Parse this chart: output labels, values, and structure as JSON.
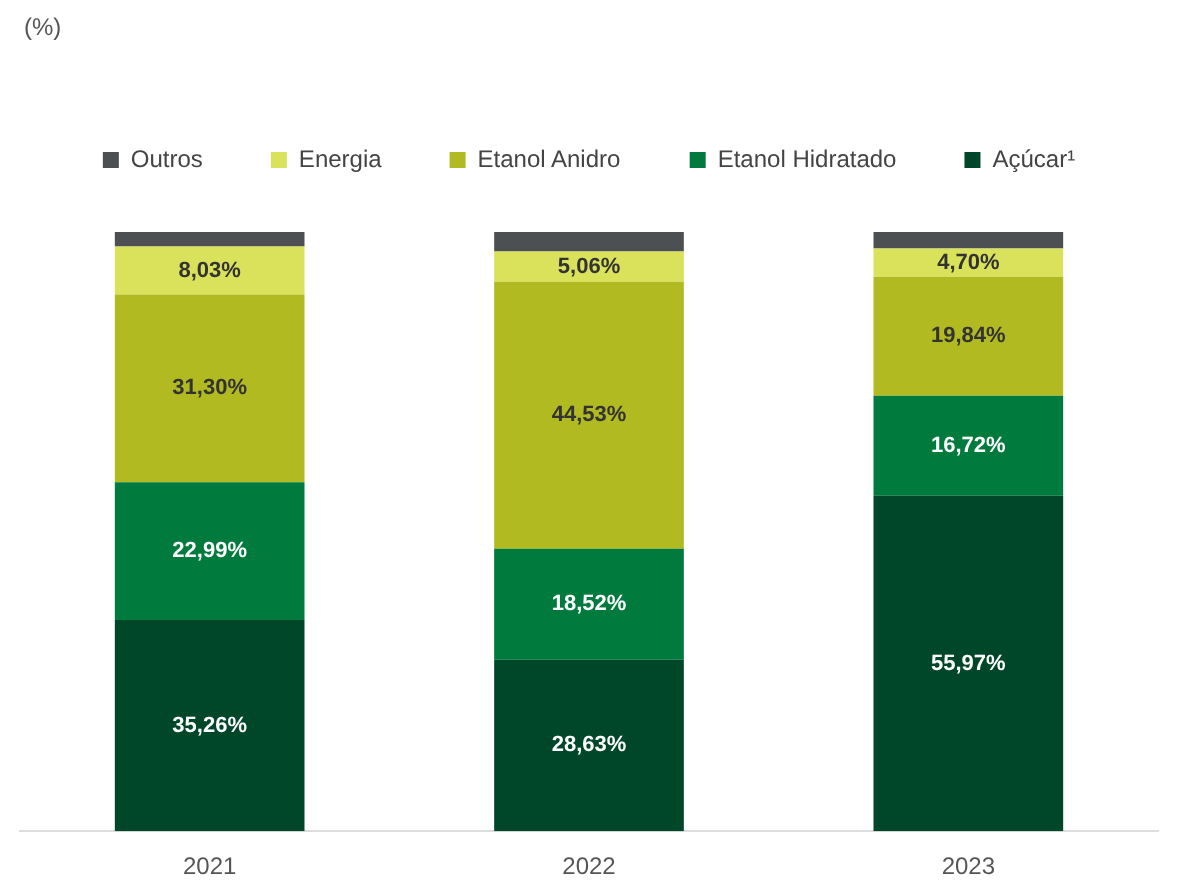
{
  "chart_data": {
    "type": "bar",
    "stacked": true,
    "annotations": [
      "(%)"
    ],
    "categories": [
      "2021",
      "2022",
      "2023"
    ],
    "ylim": [
      0,
      100
    ],
    "tick_labels": "x",
    "grid": false,
    "legend": "top",
    "series": [
      {
        "name": "Açúcar¹",
        "color": "#00472a",
        "values": [
          35.26,
          28.63,
          55.97
        ],
        "value_labels": [
          "35,26%",
          "28,63%",
          "55,97%"
        ]
      },
      {
        "name": "Etanol Hidratado",
        "color": "#007a3d",
        "values": [
          22.99,
          18.52,
          16.72
        ],
        "value_labels": [
          "22,99%",
          "18,52%",
          "16,72%"
        ]
      },
      {
        "name": "Etanol Anidro",
        "color": "#b2ba22",
        "values": [
          31.3,
          44.53,
          19.84
        ],
        "value_labels": [
          "31,30%",
          "44,53%",
          "19,84%"
        ]
      },
      {
        "name": "Energia",
        "color": "#d9e25a",
        "values": [
          8.03,
          5.06,
          4.7
        ],
        "value_labels": [
          "8,03%",
          "5,06%",
          "4,70%"
        ]
      },
      {
        "name": "Outros",
        "color": "#4d5052",
        "values": [
          2.42,
          3.26,
          2.77
        ],
        "value_labels": [
          null,
          null,
          null
        ]
      }
    ]
  }
}
